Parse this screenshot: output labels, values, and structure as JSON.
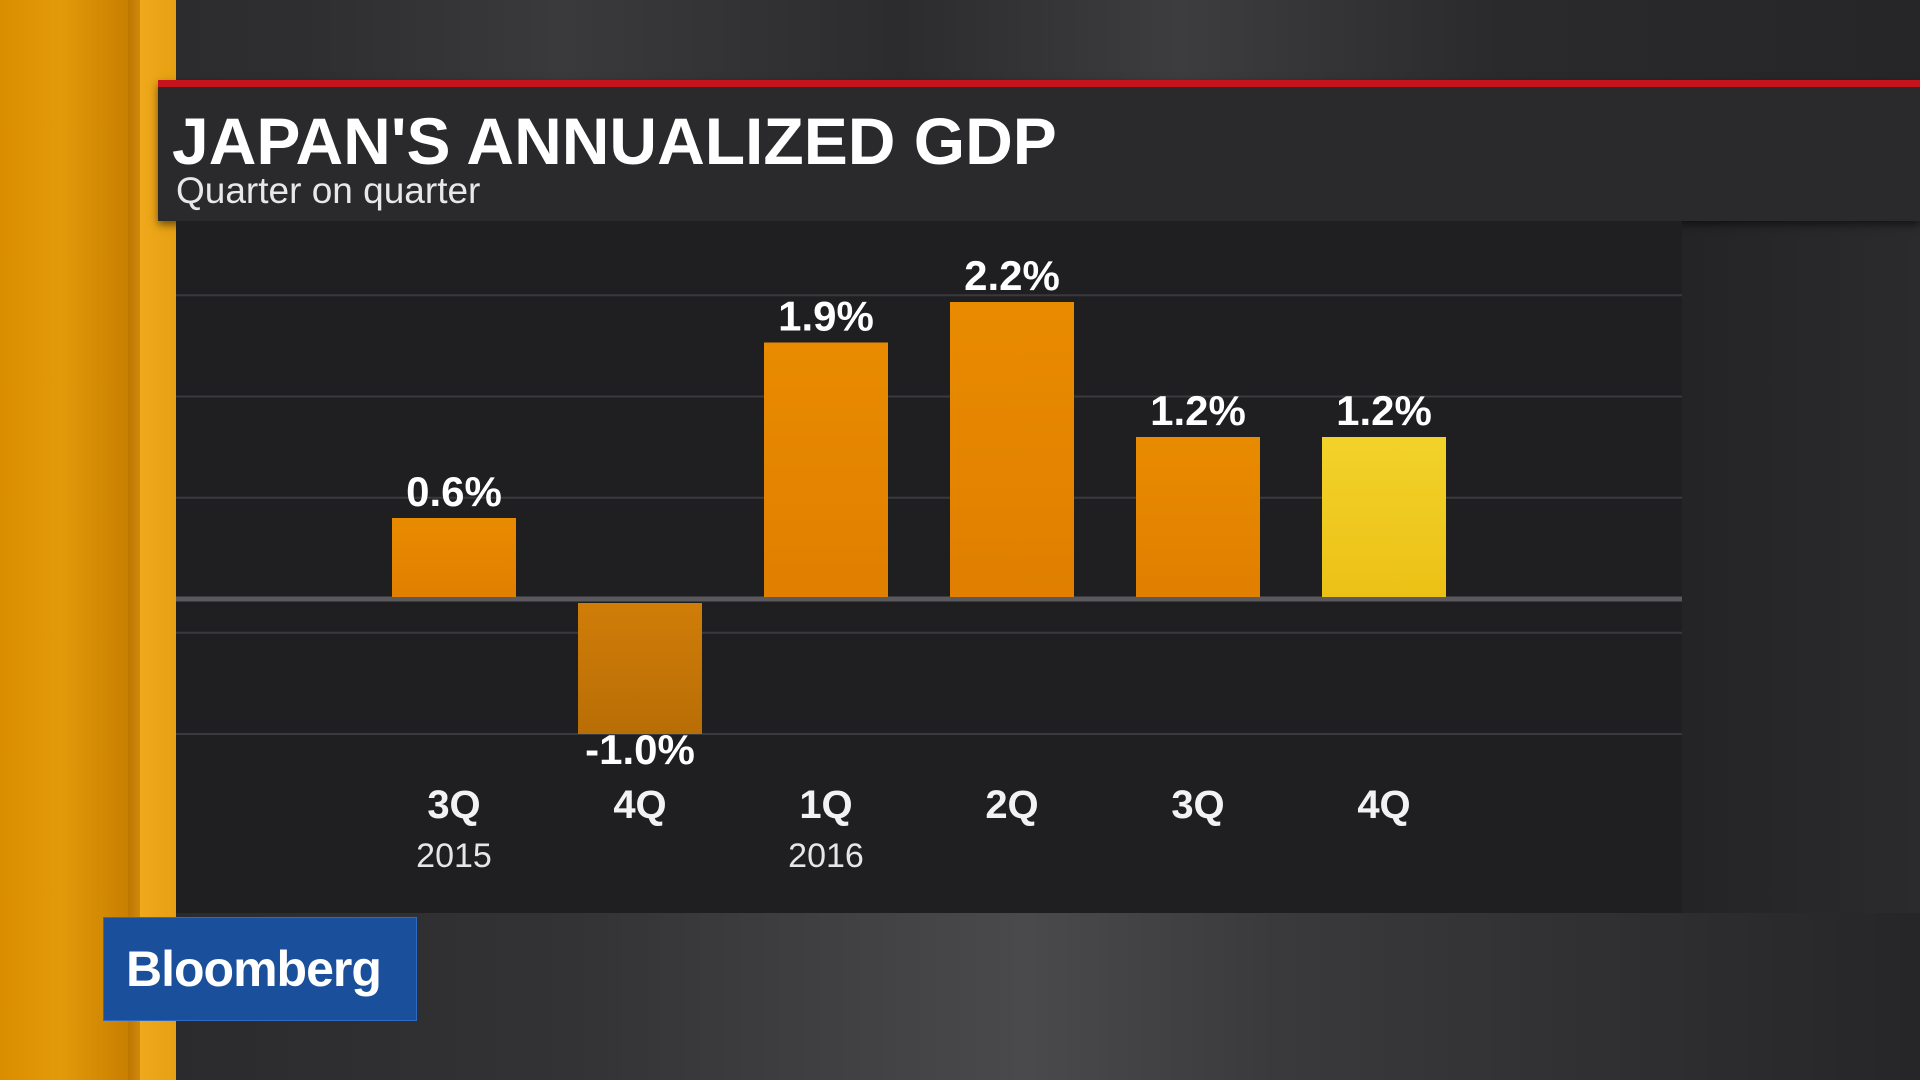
{
  "header": {
    "title": "JAPAN'S ANNUALIZED GDP",
    "subtitle": "Quarter on quarter"
  },
  "branding": {
    "logo_text": "Bloomberg"
  },
  "colors": {
    "bar": "#e68a00",
    "highlight_bar": "#f0cc1e",
    "accent_line": "#c5141b",
    "logo_bg": "#1a4f9c"
  },
  "chart_data": {
    "type": "bar",
    "title": "JAPAN'S ANNUALIZED GDP",
    "subtitle": "Quarter on quarter",
    "categories": [
      "3Q",
      "4Q",
      "1Q",
      "2Q",
      "3Q",
      "4Q"
    ],
    "year_labels": [
      "2015",
      "",
      "2016",
      "",
      "",
      ""
    ],
    "values": [
      0.6,
      -1.0,
      1.9,
      2.2,
      1.2,
      1.2
    ],
    "value_labels": [
      "0.6%",
      "-1.0%",
      "1.9%",
      "2.2%",
      "1.2%",
      "1.2%"
    ],
    "highlight_index": 5,
    "unit": "%",
    "ylim": [
      -1.25,
      2.65
    ],
    "gridline_values": [
      2.25,
      1.5,
      0.75,
      0,
      -0.25,
      -1.0
    ],
    "grid": true,
    "legend": "none"
  }
}
